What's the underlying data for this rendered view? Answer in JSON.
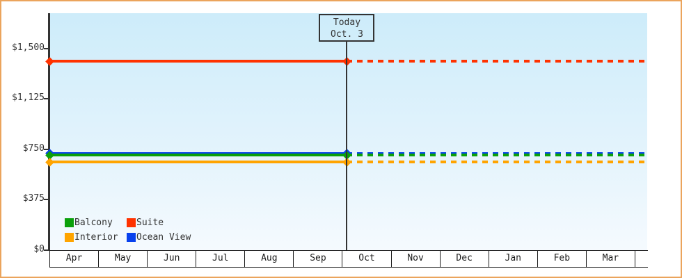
{
  "frame": {
    "border_color": "#EBA45C"
  },
  "today_annotation": {
    "line1": "Today",
    "line2": "Oct. 3"
  },
  "chart_data": {
    "type": "line",
    "title": "",
    "xlabel": "",
    "ylabel": "",
    "ylim": [
      0,
      1765
    ],
    "grid": false,
    "y_ticks": [
      {
        "value": 0,
        "label": "$0"
      },
      {
        "value": 375,
        "label": "$375"
      },
      {
        "value": 750,
        "label": "$750"
      },
      {
        "value": 1125,
        "label": "$1,125"
      },
      {
        "value": 1500,
        "label": "$1,500"
      }
    ],
    "months": [
      "Apr",
      "May",
      "Jun",
      "Jul",
      "Aug",
      "Sep",
      "Oct",
      "Nov",
      "Dec",
      "Jan",
      "Feb",
      "Mar"
    ],
    "today": {
      "month_index": 6,
      "day_fraction": 0.1,
      "label": "Today Oct. 3"
    },
    "series": [
      {
        "name": "Ocean View",
        "color": "#0741EE",
        "price": 720
      },
      {
        "name": "Balcony",
        "color": "#0BA00B",
        "price": 705
      },
      {
        "name": "Interior",
        "color": "#FFA400",
        "price": 655
      },
      {
        "name": "Suite",
        "color": "#FF3200",
        "price": 1405
      }
    ],
    "line_style": {
      "before_today": "solid",
      "after_today": "dashed"
    },
    "legend": {
      "position": "bottom-left",
      "rows": [
        [
          {
            "name": "Balcony",
            "color": "#0BA00B"
          },
          {
            "name": "Suite",
            "color": "#FF3200"
          }
        ],
        [
          {
            "name": "Interior",
            "color": "#FFA400"
          },
          {
            "name": "Ocean View",
            "color": "#0741EE"
          }
        ]
      ]
    }
  }
}
